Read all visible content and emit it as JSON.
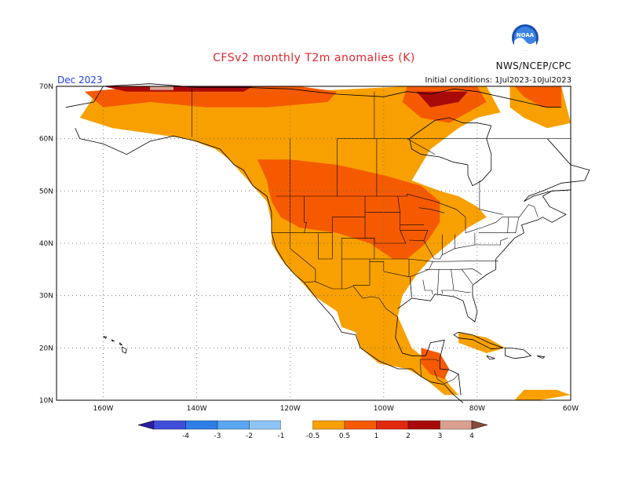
{
  "title": "CFSv2 monthly T2m anomalies (K)",
  "organization": "NWS/NCEP/CPC",
  "logo_text": "NOAA",
  "period": "Dec 2023",
  "initial_conditions": "Initial conditions: 1Jul2023-10Jul2023",
  "lat_labels": [
    "70N",
    "60N",
    "50N",
    "40N",
    "30N",
    "20N",
    "10N"
  ],
  "lon_labels": [
    "160W",
    "140W",
    "120W",
    "100W",
    "80W",
    "60W"
  ],
  "colorbar": {
    "labels": [
      "-4",
      "-3",
      "-2",
      "-1",
      "-0.5",
      "0.5",
      "1",
      "2",
      "3",
      "4"
    ],
    "colors": [
      "#2a1fa0",
      "#3f4fd8",
      "#2f7ee6",
      "#5aa6f0",
      "#8dc4f5",
      "#ffffff",
      "#f7a000",
      "#f55a00",
      "#e02a10",
      "#a80a0a",
      "#d9a090",
      "#8a4a3a"
    ]
  },
  "chart_data": {
    "type": "heatmap",
    "variable": "T2m anomaly",
    "units": "K",
    "lat_range": [
      10,
      70
    ],
    "lon_range": [
      -170,
      -60
    ],
    "categories": {
      "0.5-1": "#f7a000",
      "1-2": "#f55a00",
      "2-3": "#a80a0a",
      "3-4": "#d9a090"
    }
  }
}
